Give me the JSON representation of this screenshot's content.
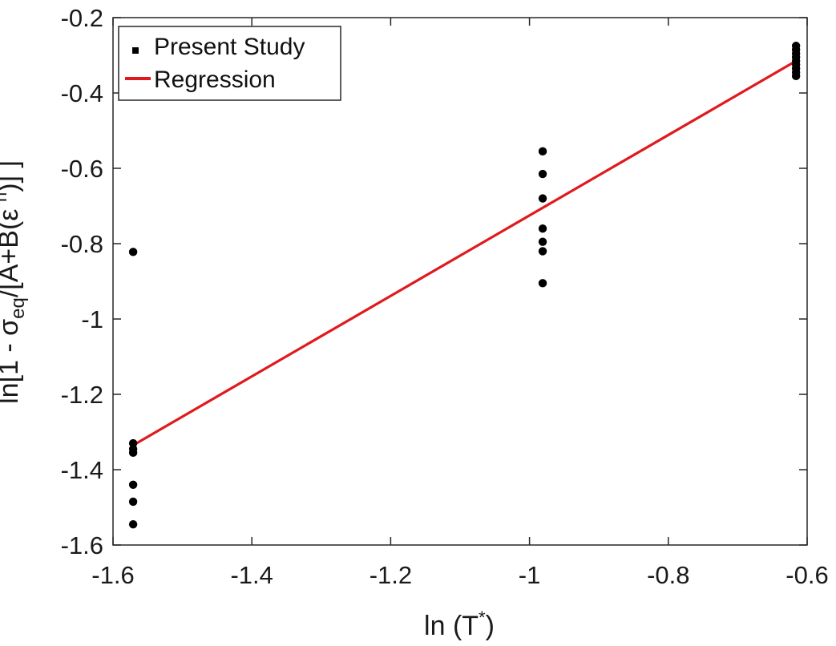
{
  "chart_data": {
    "type": "scatter",
    "xlabel": "ln (T",
    "xlabel_sup": "*",
    "xlabel_close": ")",
    "ylabel": "ln[1 - σ",
    "ylabel_sub": "eq",
    "ylabel_mid": "/[A+B(ε",
    "ylabel_sup": "*n",
    "ylabel_end": ")] ]",
    "xlim": [
      -1.6,
      -0.6
    ],
    "ylim": [
      -1.6,
      -0.2
    ],
    "x_ticks": [
      -1.6,
      -1.4,
      -1.2,
      -1,
      -0.8,
      -0.6
    ],
    "x_tick_labels": [
      "-1.6",
      "-1.4",
      "-1.2",
      "-1",
      "-0.8",
      "-0.6"
    ],
    "y_ticks": [
      -1.6,
      -1.4,
      -1.2,
      -1,
      -0.8,
      -0.6,
      -0.4,
      -0.2
    ],
    "y_tick_labels": [
      "-1.6",
      "-1.4",
      "-1.2",
      "-1",
      "-0.8",
      "-0.6",
      "-0.4",
      "-0.2"
    ],
    "grid": false,
    "legend_position": "top-left",
    "series": [
      {
        "name": "Present Study",
        "kind": "scatter",
        "color": "#000000",
        "points": [
          [
            -1.571,
            -0.822
          ],
          [
            -1.571,
            -1.33
          ],
          [
            -1.571,
            -1.345
          ],
          [
            -1.571,
            -1.355
          ],
          [
            -1.571,
            -1.44
          ],
          [
            -1.571,
            -1.485
          ],
          [
            -1.571,
            -1.545
          ],
          [
            -0.981,
            -0.555
          ],
          [
            -0.981,
            -0.615
          ],
          [
            -0.981,
            -0.68
          ],
          [
            -0.981,
            -0.76
          ],
          [
            -0.981,
            -0.795
          ],
          [
            -0.981,
            -0.82
          ],
          [
            -0.981,
            -0.905
          ],
          [
            -0.616,
            -0.275
          ],
          [
            -0.616,
            -0.285
          ],
          [
            -0.616,
            -0.295
          ],
          [
            -0.616,
            -0.305
          ],
          [
            -0.616,
            -0.315
          ],
          [
            -0.616,
            -0.325
          ],
          [
            -0.616,
            -0.335
          ],
          [
            -0.616,
            -0.345
          ],
          [
            -0.616,
            -0.355
          ]
        ]
      },
      {
        "name": "Regression",
        "kind": "line",
        "color": "#e0191e",
        "points": [
          [
            -1.571,
            -1.335
          ],
          [
            -0.616,
            -0.315
          ]
        ]
      }
    ]
  }
}
